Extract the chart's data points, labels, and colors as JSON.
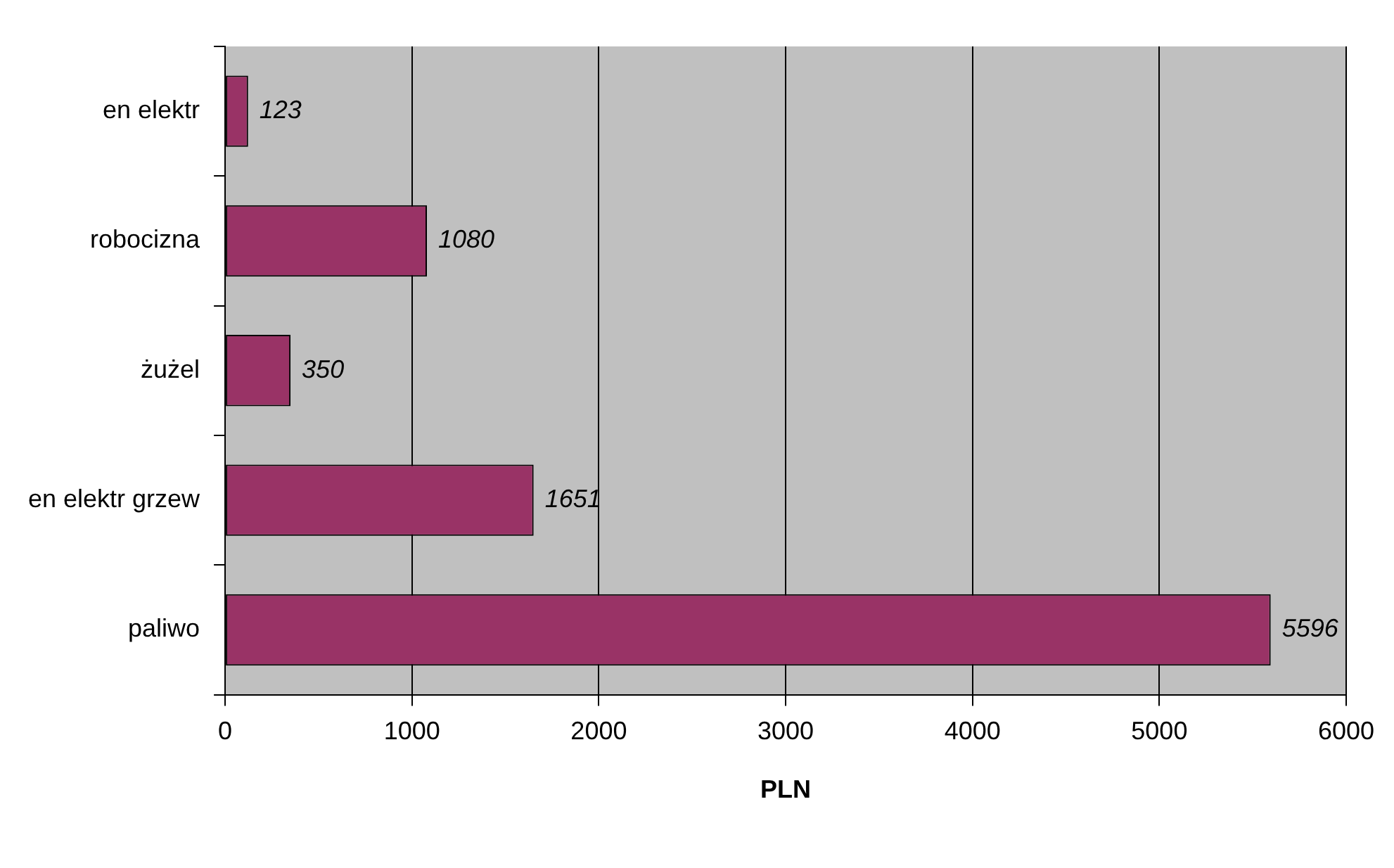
{
  "chart_data": {
    "type": "bar",
    "orientation": "horizontal",
    "categories": [
      "en elektr",
      "robocizna",
      "żużel",
      "en elektr grzew",
      "paliwo"
    ],
    "values": [
      123,
      1080,
      350,
      1651,
      5596
    ],
    "color": "#993366",
    "xlim": [
      0,
      6000
    ],
    "xticks": [
      0,
      1000,
      2000,
      3000,
      4000,
      5000,
      6000
    ],
    "xlabel": "PLN",
    "grid": "x",
    "data_labels": true,
    "legend": false
  }
}
